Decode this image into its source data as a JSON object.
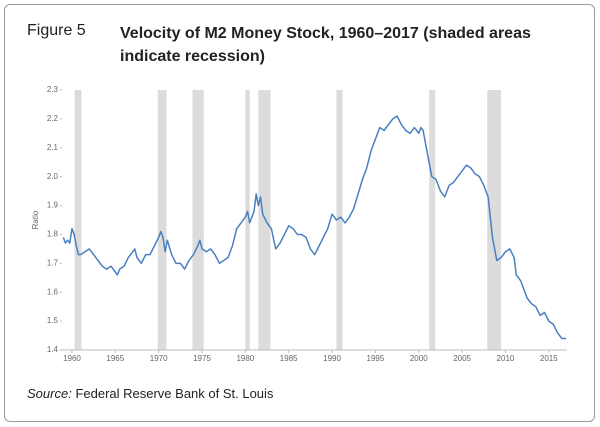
{
  "figure_label": "Figure 5",
  "chart_data": {
    "type": "line",
    "title": "Velocity of M2 Money Stock, 1960–2017 (shaded areas indicate recession)",
    "y_label": "Ratio",
    "color": "#4a7fc1",
    "recession_color": "#dcdcdc",
    "recessions": [
      [
        1960.3,
        1961.1
      ],
      [
        1969.9,
        1970.9
      ],
      [
        1973.9,
        1975.2
      ],
      [
        1980.0,
        1980.5
      ],
      [
        1981.5,
        1982.9
      ],
      [
        1990.5,
        1991.2
      ],
      [
        2001.2,
        2001.9
      ],
      [
        2007.9,
        2009.5
      ]
    ],
    "x": [
      1959.0,
      1959.25,
      1959.5,
      1959.75,
      1960.0,
      1960.25,
      1960.5,
      1960.75,
      1961.0,
      1961.5,
      1962.0,
      1962.5,
      1963.0,
      1963.5,
      1964.0,
      1964.5,
      1965.0,
      1965.25,
      1965.5,
      1966.0,
      1966.5,
      1967.0,
      1967.25,
      1967.5,
      1968.0,
      1968.5,
      1969.0,
      1969.5,
      1970.0,
      1970.25,
      1970.5,
      1970.75,
      1971.0,
      1971.5,
      1972.0,
      1972.5,
      1973.0,
      1973.5,
      1974.0,
      1974.5,
      1974.75,
      1975.0,
      1975.5,
      1976.0,
      1976.5,
      1977.0,
      1977.5,
      1978.0,
      1978.5,
      1979.0,
      1979.5,
      1980.0,
      1980.25,
      1980.5,
      1981.0,
      1981.25,
      1981.5,
      1981.75,
      1982.0,
      1982.5,
      1983.0,
      1983.5,
      1984.0,
      1984.5,
      1985.0,
      1985.5,
      1986.0,
      1986.5,
      1987.0,
      1987.5,
      1988.0,
      1988.5,
      1989.0,
      1989.5,
      1990.0,
      1990.5,
      1991.0,
      1991.5,
      1992.0,
      1992.5,
      1993.0,
      1993.5,
      1994.0,
      1994.5,
      1995.0,
      1995.5,
      1996.0,
      1996.5,
      1997.0,
      1997.5,
      1998.0,
      1998.5,
      1999.0,
      1999.5,
      2000.0,
      2000.25,
      2000.5,
      2001.0,
      2001.5,
      2002.0,
      2002.5,
      2003.0,
      2003.5,
      2004.0,
      2004.5,
      2005.0,
      2005.5,
      2006.0,
      2006.5,
      2007.0,
      2007.5,
      2008.0,
      2008.5,
      2009.0,
      2009.5,
      2010.0,
      2010.5,
      2011.0,
      2011.25,
      2011.75,
      2012.0,
      2012.5,
      2013.0,
      2013.5,
      2014.0,
      2014.5,
      2015.0,
      2015.5,
      2016.0,
      2016.5,
      2017.0
    ],
    "values": [
      1.79,
      1.77,
      1.78,
      1.77,
      1.82,
      1.8,
      1.76,
      1.73,
      1.73,
      1.74,
      1.75,
      1.73,
      1.71,
      1.69,
      1.68,
      1.69,
      1.67,
      1.66,
      1.68,
      1.69,
      1.72,
      1.74,
      1.75,
      1.72,
      1.7,
      1.73,
      1.73,
      1.76,
      1.79,
      1.81,
      1.79,
      1.74,
      1.78,
      1.73,
      1.7,
      1.7,
      1.68,
      1.71,
      1.73,
      1.76,
      1.78,
      1.75,
      1.74,
      1.75,
      1.73,
      1.7,
      1.71,
      1.72,
      1.76,
      1.82,
      1.84,
      1.86,
      1.88,
      1.84,
      1.88,
      1.94,
      1.9,
      1.93,
      1.87,
      1.84,
      1.82,
      1.75,
      1.77,
      1.8,
      1.83,
      1.82,
      1.8,
      1.8,
      1.79,
      1.75,
      1.73,
      1.76,
      1.79,
      1.82,
      1.87,
      1.85,
      1.86,
      1.84,
      1.86,
      1.89,
      1.94,
      1.99,
      2.03,
      2.09,
      2.13,
      2.17,
      2.16,
      2.18,
      2.2,
      2.21,
      2.18,
      2.16,
      2.15,
      2.17,
      2.15,
      2.17,
      2.16,
      2.08,
      2.0,
      1.99,
      1.95,
      1.93,
      1.97,
      1.98,
      2.0,
      2.02,
      2.04,
      2.03,
      2.01,
      2.0,
      1.97,
      1.93,
      1.79,
      1.71,
      1.72,
      1.74,
      1.75,
      1.72,
      1.66,
      1.64,
      1.62,
      1.58,
      1.56,
      1.55,
      1.52,
      1.53,
      1.5,
      1.49,
      1.46,
      1.44,
      1.44
    ],
    "xlim": [
      1958.85,
      2017.1
    ],
    "xticks": [
      1960,
      1965,
      1970,
      1975,
      1980,
      1985,
      1990,
      1995,
      2000,
      2005,
      2010,
      2015
    ],
    "ylim": [
      1.4,
      2.3
    ],
    "yticks": [
      1.4,
      1.5,
      1.6,
      1.7,
      1.8,
      1.9,
      {
        "value": 2,
        "label": "2.0"
      },
      2.1,
      2.2,
      2.3
    ],
    "grid": false
  },
  "source_label": "Source:",
  "source": "Federal Reserve Bank of St. Louis"
}
